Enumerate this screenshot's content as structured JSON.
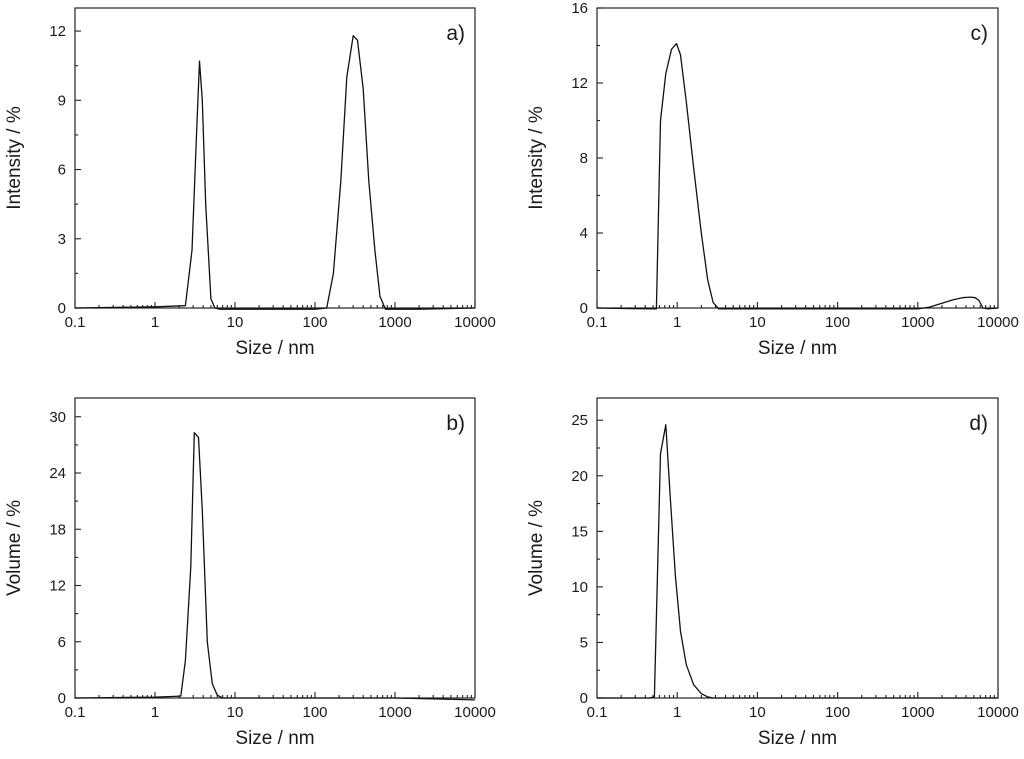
{
  "chart_data": [
    {
      "type": "line",
      "panel_label": "a)",
      "xlabel": "Size / nm",
      "ylabel": "Intensity / %",
      "xscale": "log",
      "xlim": [
        0.1,
        10000
      ],
      "ylim": [
        0,
        13
      ],
      "xticks": [
        0.1,
        1,
        10,
        100,
        1000,
        10000
      ],
      "xtick_labels": [
        "0.1",
        "1",
        "10",
        "100",
        "1000",
        "10000"
      ],
      "yticks": [
        0,
        3,
        6,
        9,
        12
      ],
      "ytick_labels": [
        "0",
        "3",
        "6",
        "9",
        "12"
      ],
      "grid": false,
      "series": [
        {
          "x": [
            0.1,
            1,
            2.4,
            2.9,
            3.3,
            3.6,
            3.9,
            4.3,
            5.0,
            5.6,
            6.5,
            20,
            100,
            140,
            170,
            210,
            250,
            300,
            340,
            400,
            470,
            560,
            650,
            760,
            2000,
            10000
          ],
          "y": [
            0,
            0.05,
            0.1,
            2.5,
            7.5,
            10.7,
            9.0,
            4.5,
            0.4,
            0,
            -0.05,
            -0.05,
            -0.05,
            0,
            1.5,
            5.5,
            10.0,
            11.8,
            11.6,
            9.5,
            5.5,
            2.5,
            0.5,
            -0.05,
            -0.05,
            0
          ]
        }
      ]
    },
    {
      "type": "line",
      "panel_label": "b)",
      "xlabel": "Size / nm",
      "ylabel": "Volume / %",
      "xscale": "log",
      "xlim": [
        0.1,
        10000
      ],
      "ylim": [
        0,
        32
      ],
      "xticks": [
        0.1,
        1,
        10,
        100,
        1000,
        10000
      ],
      "xtick_labels": [
        "0.1",
        "1",
        "10",
        "100",
        "1000",
        "10000"
      ],
      "yticks": [
        0,
        6,
        12,
        18,
        24,
        30
      ],
      "ytick_labels": [
        "0",
        "6",
        "12",
        "18",
        "24",
        "30"
      ],
      "grid": false,
      "series": [
        {
          "x": [
            0.1,
            1,
            2.1,
            2.4,
            2.8,
            3.1,
            3.5,
            3.9,
            4.5,
            5.2,
            6.0,
            7.0,
            20,
            100,
            1000,
            10000
          ],
          "y": [
            0,
            0.1,
            0.2,
            4.0,
            14.0,
            28.3,
            27.8,
            20.0,
            6.0,
            1.5,
            0.3,
            0,
            0,
            0,
            0,
            -0.2
          ]
        }
      ]
    },
    {
      "type": "line",
      "panel_label": "c)",
      "xlabel": "Size / nm",
      "ylabel": "Intensity / %",
      "xscale": "log",
      "xlim": [
        0.1,
        10000
      ],
      "ylim": [
        0,
        16
      ],
      "xticks": [
        0.1,
        1,
        10,
        100,
        1000,
        10000
      ],
      "xtick_labels": [
        "0.1",
        "1",
        "10",
        "100",
        "1000",
        "10000"
      ],
      "yticks": [
        0,
        4,
        8,
        12,
        16
      ],
      "ytick_labels": [
        "0",
        "4",
        "8",
        "12",
        "16"
      ],
      "grid": false,
      "series": [
        {
          "x": [
            0.1,
            0.45,
            0.55,
            0.62,
            0.72,
            0.85,
            0.98,
            1.1,
            1.3,
            1.6,
            2.0,
            2.4,
            2.8,
            3.3,
            4.0,
            20,
            100,
            1000,
            1400,
            2000,
            2800,
            3600,
            4500,
            5200,
            5800,
            6500,
            7500,
            10000
          ],
          "y": [
            0,
            -0.05,
            -0.05,
            10.0,
            12.5,
            13.8,
            14.1,
            13.5,
            11.0,
            7.5,
            4.0,
            1.5,
            0.3,
            -0.05,
            -0.05,
            -0.05,
            -0.05,
            -0.05,
            0.05,
            0.25,
            0.45,
            0.55,
            0.58,
            0.55,
            0.4,
            0,
            -0.05,
            0
          ]
        }
      ]
    },
    {
      "type": "line",
      "panel_label": "d)",
      "xlabel": "Size / nm",
      "ylabel": "Volume / %",
      "xscale": "log",
      "xlim": [
        0.1,
        10000
      ],
      "ylim": [
        0,
        27
      ],
      "xticks": [
        0.1,
        1,
        10,
        100,
        1000,
        10000
      ],
      "xtick_labels": [
        "0.1",
        "1",
        "10",
        "100",
        "1000",
        "10000"
      ],
      "yticks": [
        0,
        5,
        10,
        15,
        20,
        25
      ],
      "ytick_labels": [
        "0",
        "5",
        "10",
        "15",
        "20",
        "25"
      ],
      "grid": false,
      "series": [
        {
          "x": [
            0.1,
            0.45,
            0.52,
            0.62,
            0.72,
            0.82,
            0.95,
            1.1,
            1.3,
            1.6,
            2.0,
            2.4,
            2.8,
            3.5,
            10,
            100,
            1000,
            10000
          ],
          "y": [
            0,
            0,
            0.1,
            22.0,
            24.6,
            18.0,
            11.0,
            6.0,
            3.0,
            1.2,
            0.4,
            0.1,
            0,
            0,
            0,
            0,
            0,
            0
          ]
        }
      ]
    }
  ]
}
